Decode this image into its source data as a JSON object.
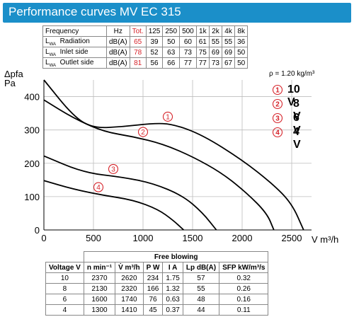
{
  "header": {
    "title": "Performance curves MV EC 315"
  },
  "noise_table": {
    "columns": [
      "Frequency",
      "Hz",
      "Tot.",
      "125",
      "250",
      "500",
      "1k",
      "2k",
      "4k",
      "8k"
    ],
    "rows": [
      {
        "sym": "L",
        "sub": "WA",
        "name": "Radiation",
        "unit": "dB(A)",
        "tot": "65",
        "vals": [
          "39",
          "50",
          "60",
          "61",
          "55",
          "55",
          "36"
        ]
      },
      {
        "sym": "L",
        "sub": "WA",
        "name": "Inlet side",
        "unit": "dB(A)",
        "tot": "78",
        "vals": [
          "52",
          "63",
          "73",
          "75",
          "69",
          "69",
          "50"
        ]
      },
      {
        "sym": "L",
        "sub": "WA",
        "name": "Outlet side",
        "unit": "dB(A)",
        "tot": "81",
        "vals": [
          "56",
          "66",
          "77",
          "77",
          "73",
          "67",
          "50"
        ]
      }
    ]
  },
  "chart_data": {
    "type": "line",
    "ylabel": "Δpfa",
    "yunit": "Pa",
    "xunit": "V m³/h",
    "density": "ρ = 1.20 kg/m³",
    "xlim": [
      0,
      2700
    ],
    "ylim": [
      0,
      450
    ],
    "xticks": [
      0,
      500,
      1000,
      1500,
      2000,
      2500
    ],
    "yticks": [
      0,
      100,
      200,
      300,
      400
    ],
    "series": [
      {
        "name": "10 V",
        "marker": "1",
        "points": [
          [
            0,
            450
          ],
          [
            300,
            340
          ],
          [
            500,
            305
          ],
          [
            800,
            310
          ],
          [
            1100,
            320
          ],
          [
            1300,
            318
          ],
          [
            1600,
            285
          ],
          [
            2000,
            210
          ],
          [
            2300,
            140
          ],
          [
            2500,
            80
          ],
          [
            2620,
            0
          ]
        ]
      },
      {
        "name": "8 V",
        "marker": "2",
        "points": [
          [
            0,
            390
          ],
          [
            300,
            335
          ],
          [
            600,
            295
          ],
          [
            900,
            280
          ],
          [
            1200,
            258
          ],
          [
            1500,
            220
          ],
          [
            1800,
            170
          ],
          [
            2050,
            110
          ],
          [
            2250,
            50
          ],
          [
            2320,
            0
          ]
        ]
      },
      {
        "name": "6 V",
        "marker": "3",
        "points": [
          [
            0,
            222
          ],
          [
            400,
            172
          ],
          [
            800,
            158
          ],
          [
            1100,
            140
          ],
          [
            1400,
            103
          ],
          [
            1600,
            52
          ],
          [
            1740,
            0
          ]
        ]
      },
      {
        "name": "4 V",
        "marker": "4",
        "points": [
          [
            0,
            148
          ],
          [
            300,
            122
          ],
          [
            600,
            104
          ],
          [
            900,
            90
          ],
          [
            1150,
            62
          ],
          [
            1300,
            30
          ],
          [
            1410,
            0
          ]
        ]
      }
    ]
  },
  "legend": [
    {
      "marker": "1",
      "label": "10 V"
    },
    {
      "marker": "2",
      "label": "8 V"
    },
    {
      "marker": "3",
      "label": "6 V"
    },
    {
      "marker": "4",
      "label": "4 V"
    }
  ],
  "free_blowing": {
    "title": "Free blowing",
    "headers": [
      "Voltage V",
      "n min⁻¹",
      "V̇ m³/h",
      "P W",
      "I A",
      "Lp dB(A)",
      "SFP kW/m³/s"
    ],
    "rows": [
      [
        "10",
        "2370",
        "2620",
        "234",
        "1.75",
        "57",
        "0.32"
      ],
      [
        "8",
        "2130",
        "2320",
        "166",
        "1.32",
        "55",
        "0.26"
      ],
      [
        "6",
        "1600",
        "1740",
        "76",
        "0.63",
        "48",
        "0.16"
      ],
      [
        "4",
        "1300",
        "1410",
        "45",
        "0.37",
        "44",
        "0.11"
      ]
    ]
  },
  "colors": {
    "header": "#1b8fc9",
    "accent_red": "#d6232a",
    "grid": "#bdbdbd"
  }
}
